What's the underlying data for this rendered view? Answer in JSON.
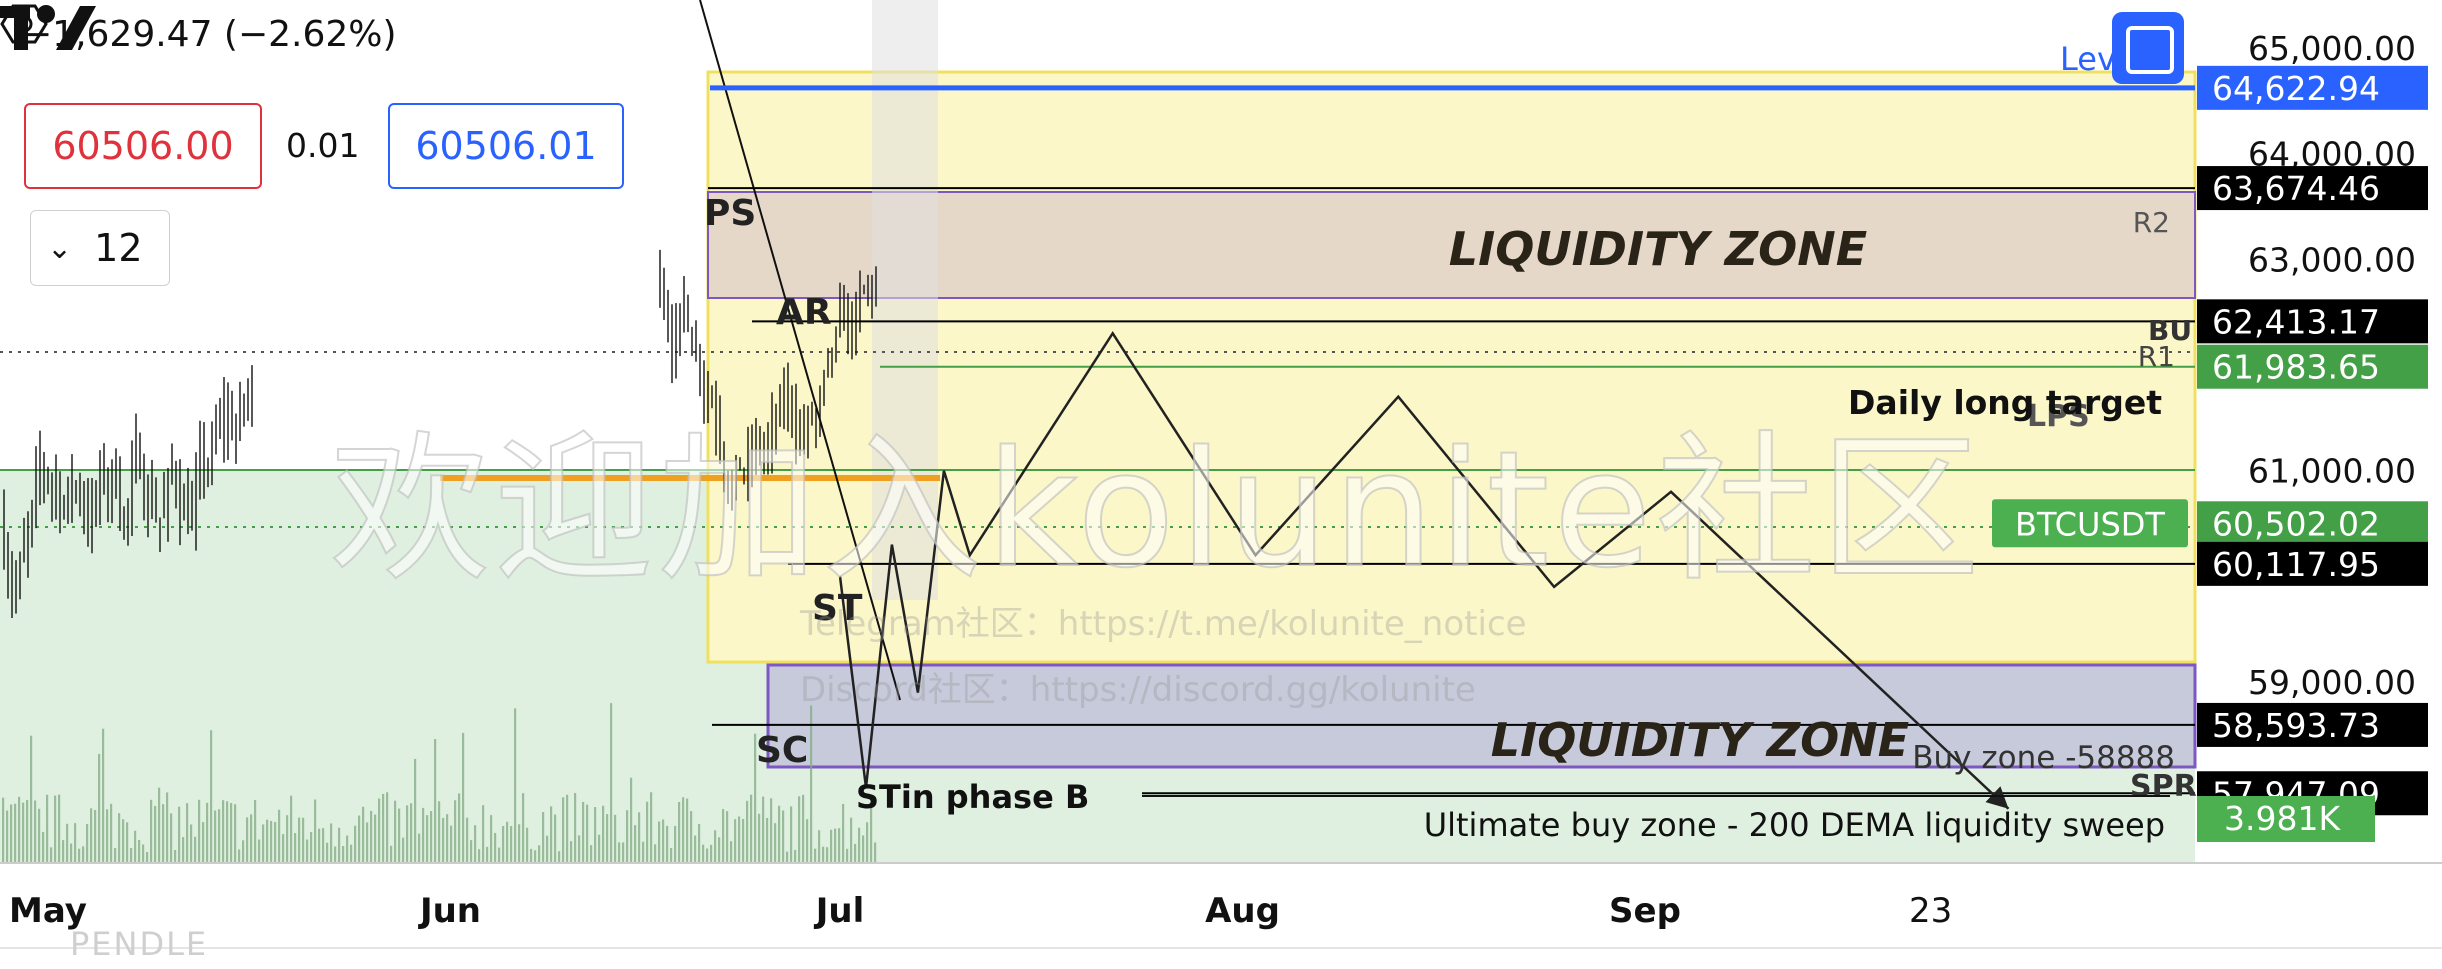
{
  "header": {
    "change_text": "−1,629.47 (−2.62%)",
    "sell_price": "60506.00",
    "spread": "0.01",
    "buy_price": "60506.01",
    "interval": "12",
    "level_label": "Lev"
  },
  "watermark": {
    "main": "欢迎加入kolunite社区",
    "telegram": "Telegram社区：https://t.me/kolunite_notice",
    "discord": "Discord社区：https://discord.gg/kolunite"
  },
  "footer_text": "PENDLE",
  "colors": {
    "bullish": "#4caf50",
    "bearish": "#000000",
    "liquidity_upper": "#e6d8c8",
    "liquidity_lower": "#c6cadb",
    "highlight_box": "#fbf7c8",
    "green_zone": "#dff0e0",
    "blue_line": "#2962ff",
    "green_line": "#43a047",
    "orange_line": "#f0a020"
  },
  "chart_data": {
    "type": "line",
    "title": "",
    "xlabel": "",
    "ylabel": "",
    "ylim": [
      56400,
      65400
    ],
    "x_ticks": [
      {
        "label": "May",
        "date": "2024-05-01"
      },
      {
        "label": "Jun",
        "date": "2024-06-01"
      },
      {
        "label": "Jul",
        "date": "2024-07-01"
      },
      {
        "label": "Aug",
        "date": "2024-08-01"
      },
      {
        "label": "Sep",
        "date": "2024-09-01"
      },
      {
        "label": "23",
        "date": "2024-09-23"
      }
    ],
    "y_ticks": [
      65000,
      64000,
      63000,
      61000,
      59000
    ],
    "price_levels": [
      {
        "label": "64,622.94",
        "value": 64622.94,
        "color": "#2962ff"
      },
      {
        "label": "63,674.46",
        "value": 63674.46,
        "color": "#000000"
      },
      {
        "label": "62,413.17",
        "value": 62413.17,
        "color": "#000000"
      },
      {
        "label": "61,983.65",
        "value": 61983.65,
        "color": "#43a047"
      },
      {
        "label": "60,502.02",
        "value": 60502.02,
        "color": "#43a047",
        "tag": "BTCUSDT"
      },
      {
        "label": "60,117.95",
        "value": 60117.95,
        "color": "#000000"
      },
      {
        "label": "58,593.73",
        "value": 58593.73,
        "color": "#000000"
      },
      {
        "label": "57,947.09",
        "value": 57947.09,
        "color": "#000000"
      }
    ],
    "volume_badge": "3.981K",
    "zones": [
      {
        "label": "LIQUIDITY ZONE",
        "from": 62500,
        "to": 63700,
        "color": "#e6d8c8"
      },
      {
        "label": "LIQUIDITY ZONE",
        "from": 57950,
        "to": 58950,
        "color": "#c6cadb"
      }
    ],
    "annotations": [
      "PS",
      "AR",
      "ST",
      "SC",
      "STin phase B",
      "R2",
      "R1",
      "BU",
      "LPS",
      "SPR",
      "Daily long target",
      "Buy zone -58888",
      "Ultimate buy zone - 200 DEMA liquidity sweep"
    ],
    "projection_path": [
      {
        "date": "2024-07-01",
        "price": 60000
      },
      {
        "date": "2024-07-03",
        "price": 58000
      },
      {
        "date": "2024-07-05",
        "price": 60300
      },
      {
        "date": "2024-07-07",
        "price": 58900
      },
      {
        "date": "2024-07-09",
        "price": 61000
      },
      {
        "date": "2024-07-11",
        "price": 60200
      },
      {
        "date": "2024-07-22",
        "price": 62300
      },
      {
        "date": "2024-08-02",
        "price": 60200
      },
      {
        "date": "2024-08-13",
        "price": 61700
      },
      {
        "date": "2024-08-25",
        "price": 59900
      },
      {
        "date": "2024-09-03",
        "price": 60800
      },
      {
        "date": "2024-09-29",
        "price": 57800
      }
    ],
    "legend": "none",
    "grid": false
  }
}
